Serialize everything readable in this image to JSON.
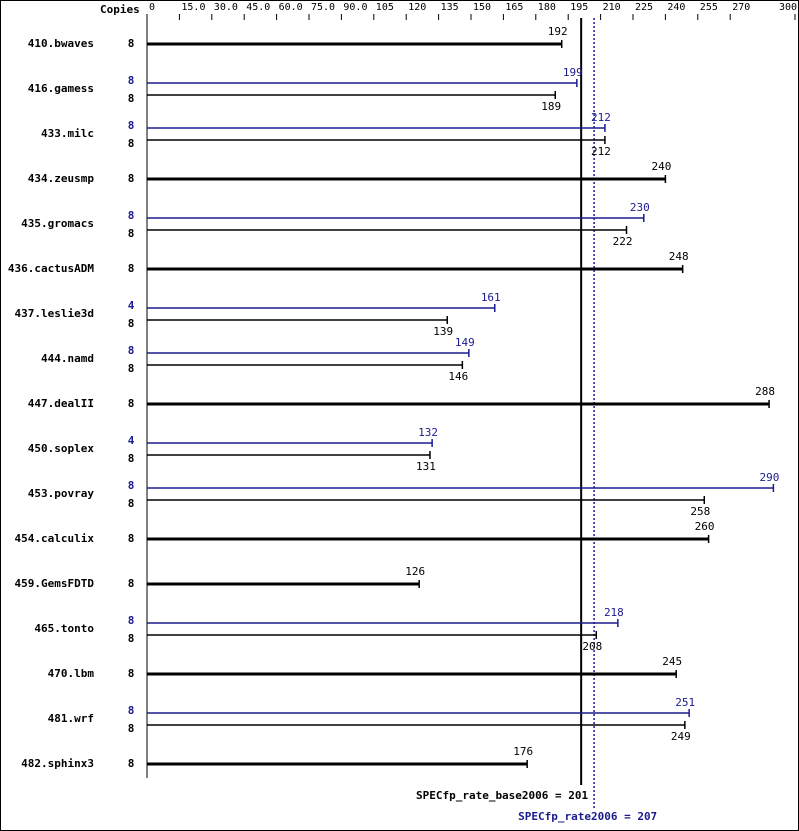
{
  "chart_data": {
    "type": "bar",
    "orientation": "horizontal",
    "copies_label": "Copies",
    "categories": [
      "410.bwaves",
      "416.gamess",
      "433.milc",
      "434.zeusmp",
      "435.gromacs",
      "436.cactusADM",
      "437.leslie3d",
      "444.namd",
      "447.dealII",
      "450.soplex",
      "453.povray",
      "454.calculix",
      "459.GemsFDTD",
      "465.tonto",
      "470.lbm",
      "481.wrf",
      "482.sphinx3"
    ],
    "series": [
      {
        "color": "#1b1b8f",
        "copies": [
          null,
          8,
          8,
          null,
          8,
          null,
          4,
          8,
          null,
          4,
          8,
          null,
          null,
          8,
          null,
          8,
          null
        ],
        "values": [
          null,
          199,
          212,
          null,
          230,
          null,
          161,
          149,
          null,
          132,
          290,
          null,
          null,
          218,
          null,
          251,
          null
        ]
      },
      {
        "color": "#000000",
        "copies": [
          8,
          8,
          8,
          8,
          8,
          8,
          8,
          8,
          8,
          8,
          8,
          8,
          8,
          8,
          8,
          8,
          8
        ],
        "values": [
          192,
          189,
          212,
          240,
          222,
          248,
          139,
          146,
          288,
          131,
          258,
          260,
          126,
          208,
          245,
          249,
          176
        ]
      }
    ],
    "xlim": [
      0,
      300
    ],
    "xticks": [
      0,
      {
        "value": 15,
        "label": "15.0"
      },
      {
        "value": 30,
        "label": "30.0"
      },
      {
        "value": 45,
        "label": "45.0"
      },
      {
        "value": 60,
        "label": "60.0"
      },
      {
        "value": 75,
        "label": "75.0"
      },
      {
        "value": 90,
        "label": "90.0"
      },
      105,
      120,
      135,
      150,
      165,
      180,
      195,
      210,
      225,
      240,
      255,
      270,
      300
    ],
    "reference_lines": [
      {
        "label": "SPECfp_rate_base2006 = 201",
        "value": 201,
        "color": "#000000",
        "dashed": false
      },
      {
        "label": "SPECfp_rate2006 = 207",
        "value": 207,
        "color": "#1b1b8f",
        "dashed": true
      }
    ]
  }
}
